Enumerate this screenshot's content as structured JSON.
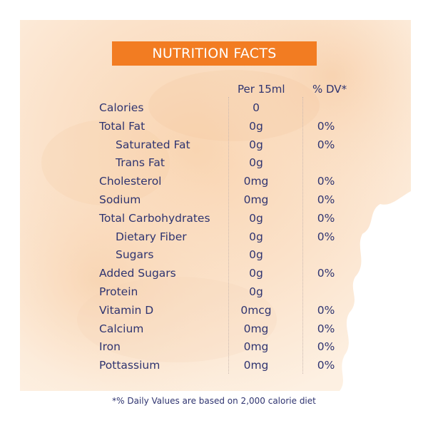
{
  "title": "NUTRITION FACTS",
  "columns": {
    "per": "Per 15ml",
    "dv": "% DV*"
  },
  "rows": [
    {
      "name": "Calories",
      "amount": "0",
      "dv": "",
      "indent": false
    },
    {
      "name": "Total Fat",
      "amount": "0g",
      "dv": "0%",
      "indent": false
    },
    {
      "name": "Saturated Fat",
      "amount": "0g",
      "dv": "0%",
      "indent": true
    },
    {
      "name": "Trans Fat",
      "amount": "0g",
      "dv": "",
      "indent": true
    },
    {
      "name": "Cholesterol",
      "amount": "0mg",
      "dv": "0%",
      "indent": false
    },
    {
      "name": "Sodium",
      "amount": "0mg",
      "dv": "0%",
      "indent": false
    },
    {
      "name": "Total Carbohydrates",
      "amount": "0g",
      "dv": "0%",
      "indent": false
    },
    {
      "name": "Dietary Fiber",
      "amount": "0g",
      "dv": "0%",
      "indent": true
    },
    {
      "name": "Sugars",
      "amount": "0g",
      "dv": "",
      "indent": true
    },
    {
      "name": "Added Sugars",
      "amount": "0g",
      "dv": "0%",
      "indent": false
    },
    {
      "name": "Protein",
      "amount": "0g",
      "dv": "",
      "indent": false
    },
    {
      "name": "Vitamin D",
      "amount": "0mcg",
      "dv": "0%",
      "indent": false
    },
    {
      "name": "Calcium",
      "amount": "0mg",
      "dv": "0%",
      "indent": false
    },
    {
      "name": "Iron",
      "amount": "0mg",
      "dv": "0%",
      "indent": false
    },
    {
      "name": "Pottassium",
      "amount": "0mg",
      "dv": "0%",
      "indent": false
    }
  ],
  "footnote": "*% Daily Values are based on 2,000 calorie diet",
  "colors": {
    "accent": "#f27c22",
    "text": "#2f3470",
    "wash": "#fbe3cb"
  }
}
